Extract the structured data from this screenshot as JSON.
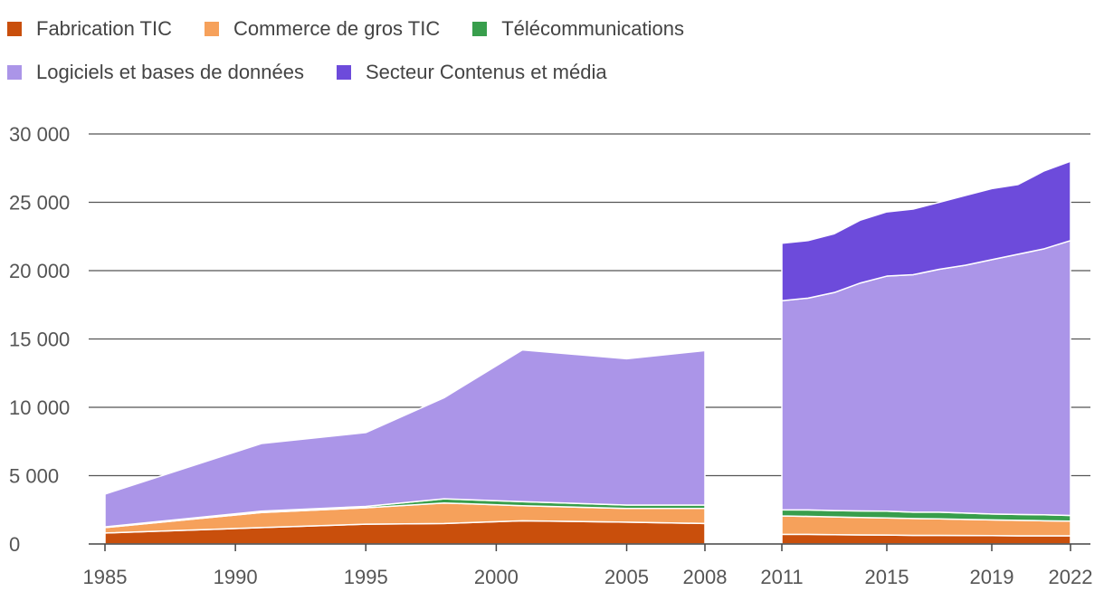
{
  "chart_data": {
    "type": "area",
    "stacked": true,
    "title": "",
    "xlabel": "",
    "ylabel": "",
    "ylim": [
      0,
      30000
    ],
    "yticks": [
      0,
      5000,
      10000,
      15000,
      20000,
      25000,
      30000
    ],
    "ytick_labels": [
      "0",
      "5 000",
      "10 000",
      "15 000",
      "20 000",
      "25 000",
      "30 000"
    ],
    "xticks": [
      1985,
      1990,
      1995,
      2000,
      2005,
      2008,
      2011,
      2015,
      2019,
      2022
    ],
    "xtick_labels": [
      "1985",
      "1990",
      "1995",
      "2000",
      "2005",
      "2008",
      "2011",
      "2015",
      "2019",
      "2022"
    ],
    "grid": "horizontal",
    "legend_position": "top-left",
    "segments": [
      {
        "x": [
          1985,
          1991,
          1995,
          1998,
          2001,
          2005,
          2008
        ],
        "series": [
          {
            "name": "Fabrication TIC",
            "values": [
              800,
              1200,
              1450,
              1500,
              1700,
              1600,
              1500
            ]
          },
          {
            "name": "Commerce de gros TIC",
            "values": [
              400,
              1100,
              1200,
              1500,
              1100,
              1000,
              1100
            ]
          },
          {
            "name": "Télécommunications",
            "values": [
              50,
              100,
              100,
              300,
              300,
              250,
              250
            ]
          },
          {
            "name": "Logiciels et bases de données",
            "values": [
              2400,
              4950,
              5400,
              7400,
              11100,
              10700,
              11300
            ]
          },
          {
            "name": "Secteur Contenus et média",
            "values": [
              0,
              0,
              0,
              0,
              0,
              0,
              0
            ]
          }
        ]
      },
      {
        "x": [
          2011,
          2012,
          2013,
          2014,
          2015,
          2016,
          2017,
          2018,
          2019,
          2020,
          2021,
          2022
        ],
        "series": [
          {
            "name": "Fabrication TIC",
            "values": [
              700,
              700,
              680,
              660,
              650,
              630,
              630,
              620,
              610,
              600,
              600,
              600
            ]
          },
          {
            "name": "Commerce de gros TIC",
            "values": [
              1350,
              1320,
              1300,
              1280,
              1250,
              1230,
              1210,
              1180,
              1150,
              1130,
              1100,
              1070
            ]
          },
          {
            "name": "Télécommunications",
            "values": [
              450,
              470,
              460,
              480,
              500,
              470,
              490,
              460,
              430,
              430,
              440,
              420
            ]
          },
          {
            "name": "Logiciels et bases de données",
            "values": [
              15300,
              15500,
              15960,
              16680,
              17200,
              17370,
              17770,
              18140,
              18610,
              19040,
              19460,
              20110
            ]
          },
          {
            "name": "Secteur Contenus et média",
            "values": [
              4200,
              4210,
              4300,
              4600,
              4700,
              4800,
              4900,
              5100,
              5200,
              5100,
              5700,
              5800
            ]
          }
        ]
      }
    ],
    "colors": {
      "Fabrication TIC": "#c94f0c",
      "Commerce de gros TIC": "#f6a15b",
      "Télécommunications": "#389e4c",
      "Logiciels et bases de données": "#ab95e8",
      "Secteur Contenus et média": "#6d4bdb"
    }
  },
  "legend": {
    "row1": [
      {
        "label": "Fabrication TIC",
        "color": "#c94f0c"
      },
      {
        "label": "Commerce de gros TIC",
        "color": "#f6a15b"
      },
      {
        "label": "Télécommunications",
        "color": "#389e4c"
      }
    ],
    "row2": [
      {
        "label": "Logiciels et bases de données",
        "color": "#ab95e8"
      },
      {
        "label": "Secteur Contenus et média",
        "color": "#6d4bdb"
      }
    ]
  }
}
